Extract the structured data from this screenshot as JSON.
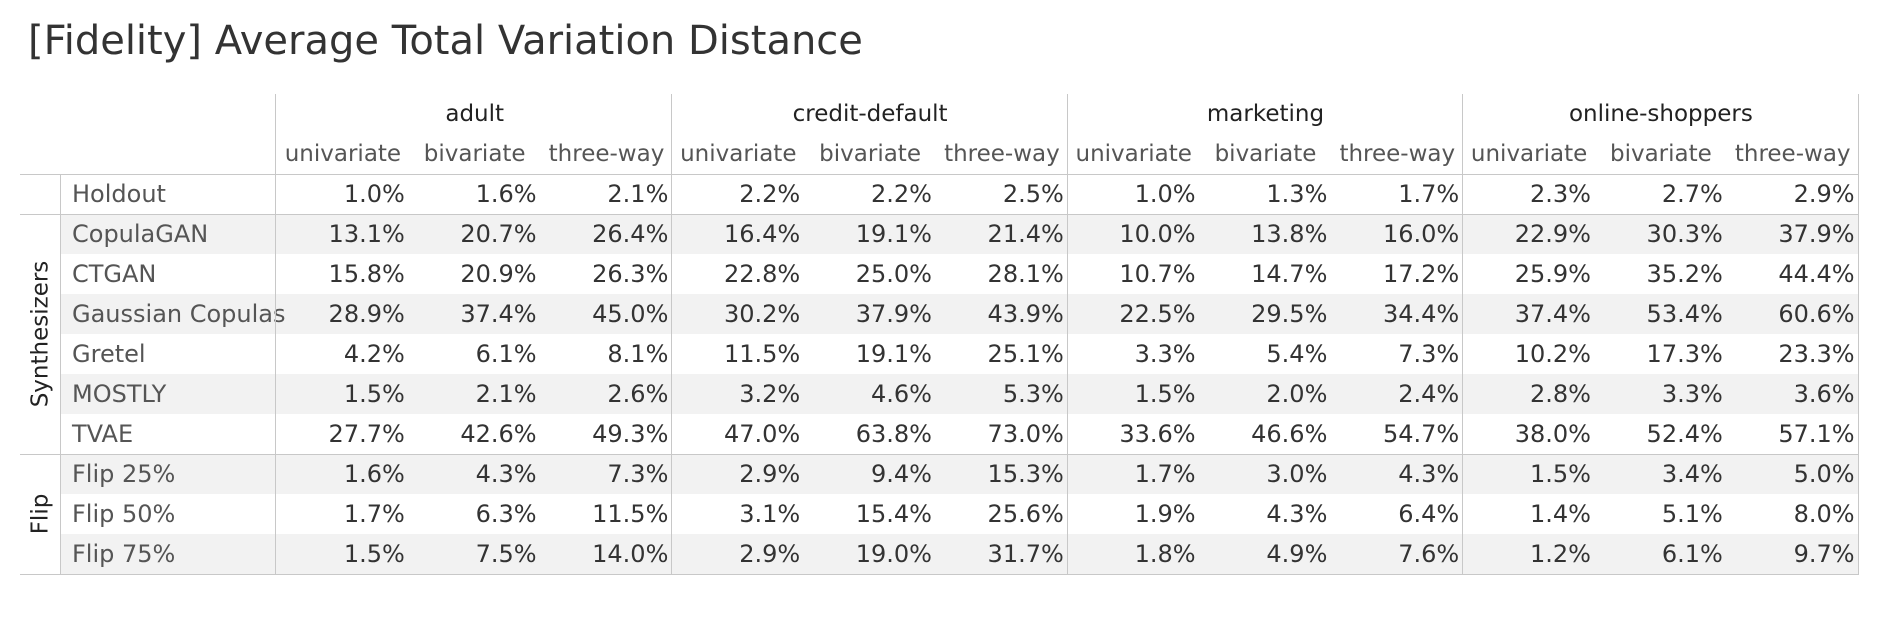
{
  "title": "[Fidelity] Average Total Variation Distance",
  "chart_data": {
    "type": "table",
    "title": "[Fidelity] Average Total Variation Distance",
    "datasets": [
      "adult",
      "credit-default",
      "marketing",
      "online-shoppers"
    ],
    "metrics": [
      "univariate",
      "bivariate",
      "three-way"
    ],
    "groups": [
      {
        "label": "",
        "rows": [
          {
            "name": "Holdout",
            "values": [
              "1.0%",
              "1.6%",
              "2.1%",
              "2.2%",
              "2.2%",
              "2.5%",
              "1.0%",
              "1.3%",
              "1.7%",
              "2.3%",
              "2.7%",
              "2.9%"
            ]
          }
        ]
      },
      {
        "label": "Synthesizers",
        "rows": [
          {
            "name": "CopulaGAN",
            "values": [
              "13.1%",
              "20.7%",
              "26.4%",
              "16.4%",
              "19.1%",
              "21.4%",
              "10.0%",
              "13.8%",
              "16.0%",
              "22.9%",
              "30.3%",
              "37.9%"
            ]
          },
          {
            "name": "CTGAN",
            "values": [
              "15.8%",
              "20.9%",
              "26.3%",
              "22.8%",
              "25.0%",
              "28.1%",
              "10.7%",
              "14.7%",
              "17.2%",
              "25.9%",
              "35.2%",
              "44.4%"
            ]
          },
          {
            "name": "Gaussian Copulas",
            "values": [
              "28.9%",
              "37.4%",
              "45.0%",
              "30.2%",
              "37.9%",
              "43.9%",
              "22.5%",
              "29.5%",
              "34.4%",
              "37.4%",
              "53.4%",
              "60.6%"
            ]
          },
          {
            "name": "Gretel",
            "values": [
              "4.2%",
              "6.1%",
              "8.1%",
              "11.5%",
              "19.1%",
              "25.1%",
              "3.3%",
              "5.4%",
              "7.3%",
              "10.2%",
              "17.3%",
              "23.3%"
            ]
          },
          {
            "name": "MOSTLY",
            "values": [
              "1.5%",
              "2.1%",
              "2.6%",
              "3.2%",
              "4.6%",
              "5.3%",
              "1.5%",
              "2.0%",
              "2.4%",
              "2.8%",
              "3.3%",
              "3.6%"
            ]
          },
          {
            "name": "TVAE",
            "values": [
              "27.7%",
              "42.6%",
              "49.3%",
              "47.0%",
              "63.8%",
              "73.0%",
              "33.6%",
              "46.6%",
              "54.7%",
              "38.0%",
              "52.4%",
              "57.1%"
            ]
          }
        ]
      },
      {
        "label": "Flip",
        "rows": [
          {
            "name": "Flip 25%",
            "values": [
              "1.6%",
              "4.3%",
              "7.3%",
              "2.9%",
              "9.4%",
              "15.3%",
              "1.7%",
              "3.0%",
              "4.3%",
              "1.5%",
              "3.4%",
              "5.0%"
            ]
          },
          {
            "name": "Flip 50%",
            "values": [
              "1.7%",
              "6.3%",
              "11.5%",
              "3.1%",
              "15.4%",
              "25.6%",
              "1.9%",
              "4.3%",
              "6.4%",
              "1.4%",
              "5.1%",
              "8.0%"
            ]
          },
          {
            "name": "Flip 75%",
            "values": [
              "1.5%",
              "7.5%",
              "14.0%",
              "2.9%",
              "19.0%",
              "31.7%",
              "1.8%",
              "4.9%",
              "7.6%",
              "1.2%",
              "6.1%",
              "9.7%"
            ]
          }
        ]
      }
    ]
  }
}
